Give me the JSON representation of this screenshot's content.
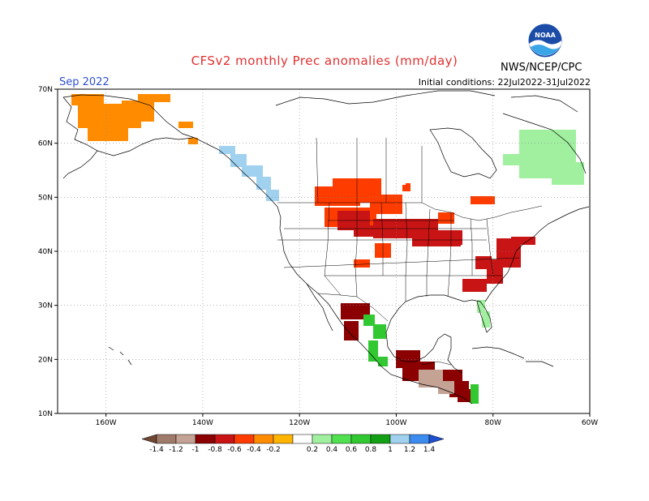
{
  "title": "CFSv2 monthly Prec anomalies (mm/day)",
  "month": "Sep 2022",
  "initial_conditions": "Initial conditions: 22Jul2022-31Jul2022",
  "agency": "NWS/NCEP/CPC",
  "logo_text": "NOAA",
  "lat_labels": [
    "70N",
    "60N",
    "50N",
    "40N",
    "30N",
    "20N",
    "10N"
  ],
  "lon_labels": [
    "160W",
    "140W",
    "120W",
    "100W",
    "80W",
    "60W"
  ],
  "colorbar": {
    "ticks": [
      "-1.4",
      "-1.2",
      "-1",
      "-0.8",
      "-0.6",
      "-0.4",
      "-0.2",
      "0.2",
      "0.4",
      "0.6",
      "0.8",
      "1",
      "1.2",
      "1.4"
    ],
    "colors": [
      "#6e4632",
      "#a07a6a",
      "#c4a294",
      "#8b0000",
      "#c81414",
      "#ff3c00",
      "#ff8c00",
      "#ffb400",
      "#ffffff",
      "#a0f0a0",
      "#50e050",
      "#32c832",
      "#14a014",
      "#a0d2f0",
      "#3c8cf0",
      "#1e50d0"
    ]
  },
  "chart_data": {
    "type": "heatmap",
    "title": "CFSv2 monthly Prec anomalies (mm/day)",
    "lat_range": [
      10,
      70
    ],
    "lon_range": [
      -170,
      -60
    ],
    "anomalies": [
      {
        "region": "Alaska",
        "value": -0.3
      },
      {
        "region": "Pacific Northwest coast",
        "value": 1.2
      },
      {
        "region": "Northern Plains",
        "value": -0.5
      },
      {
        "region": "Upper Midwest",
        "value": -0.7
      },
      {
        "region": "Mid-Atlantic",
        "value": -0.7
      },
      {
        "region": "Florida",
        "value": 0.5
      },
      {
        "region": "Canada (north)",
        "value": 0.3
      },
      {
        "region": "Quebec/Labrador",
        "value": 0.4
      },
      {
        "region": "Southern Mexico",
        "value": -1.0
      },
      {
        "region": "Guatemala",
        "value": -1.2
      },
      {
        "region": "Mexico Pacific coast",
        "value": 0.9
      }
    ]
  }
}
